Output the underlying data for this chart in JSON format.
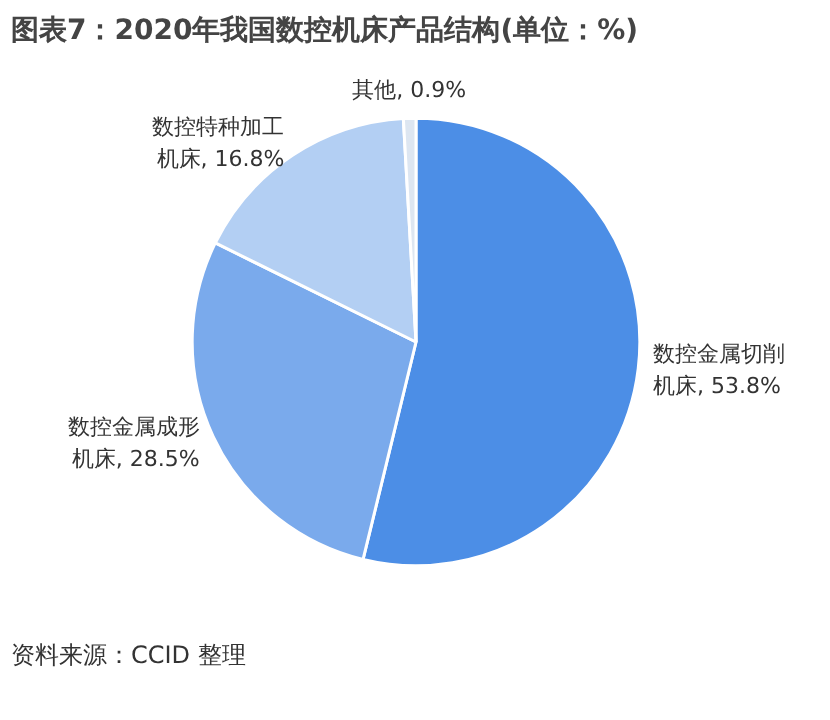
{
  "chart_data": {
    "type": "pie",
    "title": "图表7：2020年我国数控机床产品结构(单位：%)",
    "categories": [
      "数控金属切削机床",
      "数控金属成形机床",
      "数控特种加工机床",
      "其他"
    ],
    "values": [
      53.8,
      28.5,
      16.8,
      0.9
    ],
    "colors": [
      "#4c8ee6",
      "#7aaaec",
      "#b3cff3",
      "#dde6f1"
    ],
    "value_labels": [
      ", 53.8%",
      ", 28.5%",
      ", 16.8%",
      ", 0.9%"
    ],
    "annotations": [
      "资料来源：CCID 整理"
    ]
  }
}
